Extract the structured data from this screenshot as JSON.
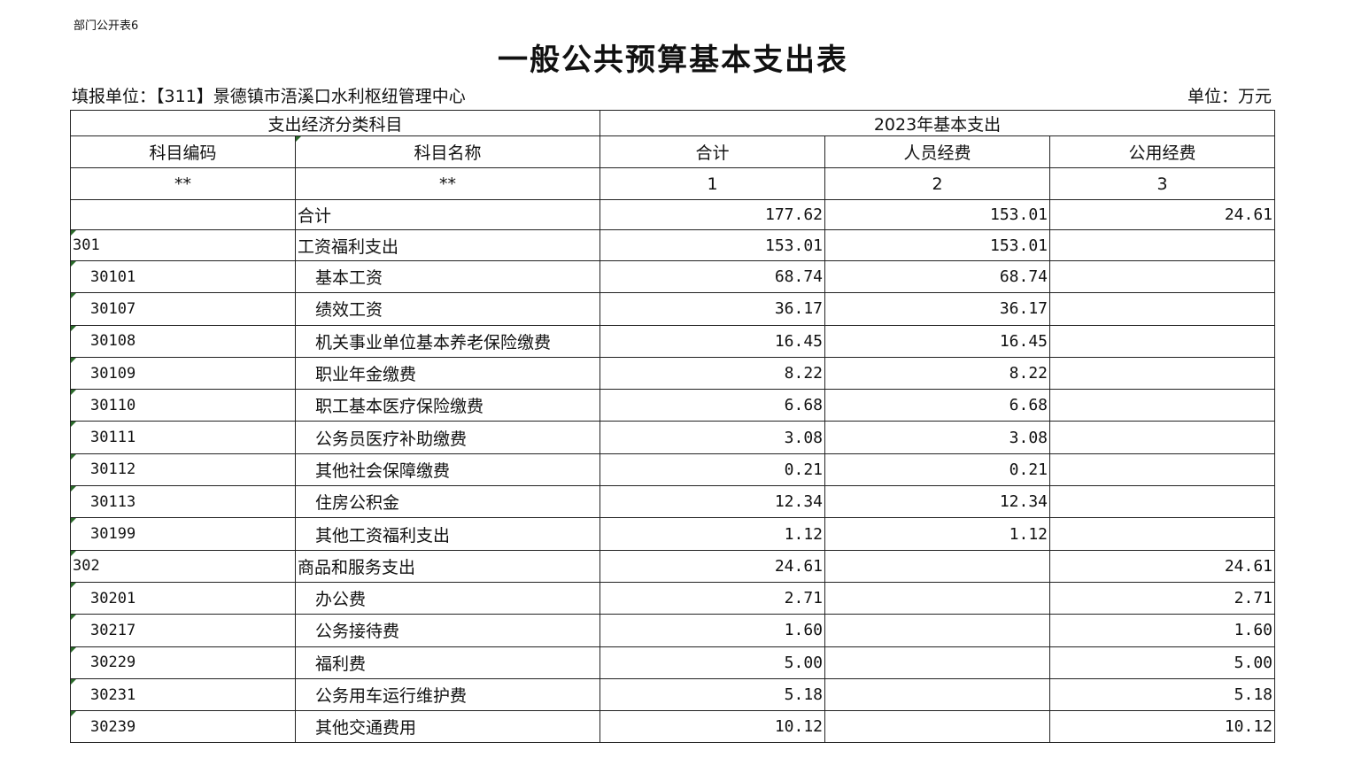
{
  "table_tag": "部门公开表6",
  "title": "一般公共预算基本支出表",
  "reporting_unit": "填报单位：【311】景德镇市浯溪口水利枢纽管理中心",
  "unit": "单位：万元",
  "header": {
    "group_left": "支出经济分类科目",
    "group_right": "2023年基本支出",
    "columns": [
      "科目编码",
      "科目名称",
      "合计",
      "人员经费",
      "公用经费"
    ],
    "index": [
      "**",
      "**",
      "1",
      "2",
      "3"
    ]
  },
  "rows": [
    {
      "code": "",
      "name": "合计",
      "total": "177.62",
      "personnel": "153.01",
      "public": "24.61",
      "level": 0
    },
    {
      "code": "301",
      "name": "工资福利支出",
      "total": "153.01",
      "personnel": "153.01",
      "public": "",
      "level": 1
    },
    {
      "code": "30101",
      "name": "基本工资",
      "total": "68.74",
      "personnel": "68.74",
      "public": "",
      "level": 2
    },
    {
      "code": "30107",
      "name": "绩效工资",
      "total": "36.17",
      "personnel": "36.17",
      "public": "",
      "level": 2
    },
    {
      "code": "30108",
      "name": "机关事业单位基本养老保险缴费",
      "total": "16.45",
      "personnel": "16.45",
      "public": "",
      "level": 2
    },
    {
      "code": "30109",
      "name": "职业年金缴费",
      "total": "8.22",
      "personnel": "8.22",
      "public": "",
      "level": 2
    },
    {
      "code": "30110",
      "name": "职工基本医疗保险缴费",
      "total": "6.68",
      "personnel": "6.68",
      "public": "",
      "level": 2
    },
    {
      "code": "30111",
      "name": "公务员医疗补助缴费",
      "total": "3.08",
      "personnel": "3.08",
      "public": "",
      "level": 2
    },
    {
      "code": "30112",
      "name": "其他社会保障缴费",
      "total": "0.21",
      "personnel": "0.21",
      "public": "",
      "level": 2
    },
    {
      "code": "30113",
      "name": "住房公积金",
      "total": "12.34",
      "personnel": "12.34",
      "public": "",
      "level": 2
    },
    {
      "code": "30199",
      "name": "其他工资福利支出",
      "total": "1.12",
      "personnel": "1.12",
      "public": "",
      "level": 2
    },
    {
      "code": "302",
      "name": "商品和服务支出",
      "total": "24.61",
      "personnel": "",
      "public": "24.61",
      "level": 1
    },
    {
      "code": "30201",
      "name": "办公费",
      "total": "2.71",
      "personnel": "",
      "public": "2.71",
      "level": 2
    },
    {
      "code": "30217",
      "name": "公务接待费",
      "total": "1.60",
      "personnel": "",
      "public": "1.60",
      "level": 2
    },
    {
      "code": "30229",
      "name": "福利费",
      "total": "5.00",
      "personnel": "",
      "public": "5.00",
      "level": 2
    },
    {
      "code": "30231",
      "name": "公务用车运行维护费",
      "total": "5.18",
      "personnel": "",
      "public": "5.18",
      "level": 2
    },
    {
      "code": "30239",
      "name": "其他交通费用",
      "total": "10.12",
      "personnel": "",
      "public": "10.12",
      "level": 2
    }
  ]
}
